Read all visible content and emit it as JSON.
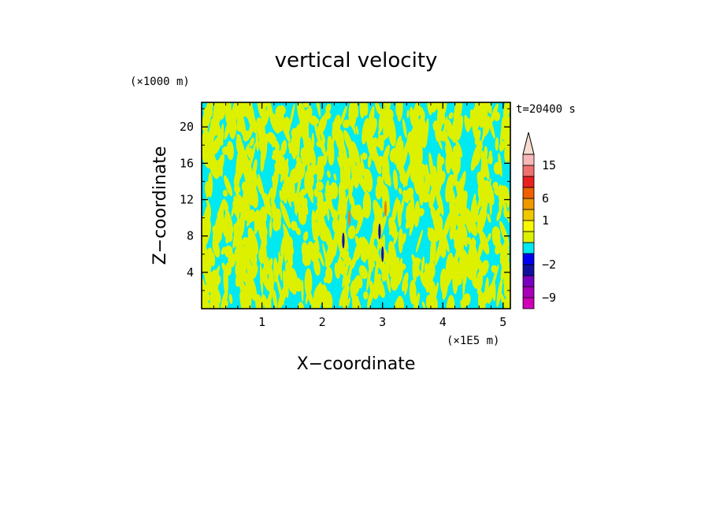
{
  "chart_data": {
    "type": "heatmap",
    "title": "vertical velocity",
    "xlabel": "X−coordinate",
    "ylabel": "Z−coordinate",
    "x_unit": "(×1E5 m)",
    "y_unit": "(×1000 m)",
    "time_label": "t=20400 s",
    "xlim": [
      0,
      5.12
    ],
    "ylim": [
      0,
      22.7
    ],
    "x_ticks": [
      1,
      2,
      3,
      4,
      5
    ],
    "y_ticks": [
      4,
      8,
      12,
      16,
      20
    ],
    "background_colors": {
      "negative": "#00e8f0",
      "positive": "#ddf000",
      "strong_negative": "#1010b0",
      "strong_positive": "#f08000"
    },
    "colorbar": {
      "extend": "max",
      "levels": [
        {
          "color": "#d000b8",
          "label": "−9"
        },
        {
          "color": "#a800b8",
          "label": ""
        },
        {
          "color": "#7a00c0",
          "label": ""
        },
        {
          "color": "#1010a0",
          "label": "−2"
        },
        {
          "color": "#0000f0",
          "label": ""
        },
        {
          "color": "#00e8f0",
          "label": ""
        },
        {
          "color": "#ddf000",
          "label": ""
        },
        {
          "color": "#f8f800",
          "label": "1"
        },
        {
          "color": "#f0c800",
          "label": ""
        },
        {
          "color": "#f09800",
          "label": "6"
        },
        {
          "color": "#f06000",
          "label": ""
        },
        {
          "color": "#e82020",
          "label": ""
        },
        {
          "color": "#f07070",
          "label": "15"
        },
        {
          "color": "#f8b8b8",
          "label": ""
        }
      ],
      "arrow_color": "#f8dcd0"
    }
  }
}
